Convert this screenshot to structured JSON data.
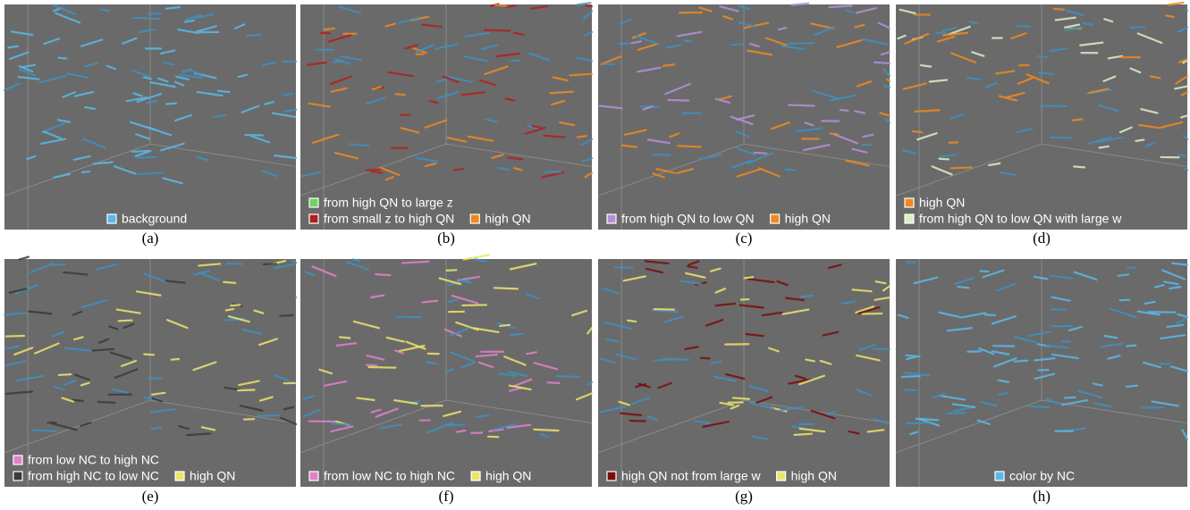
{
  "panels": [
    {
      "caption": "(a)",
      "legend": [
        [
          {
            "label": "background",
            "color": "#59b8e6"
          }
        ]
      ]
    },
    {
      "caption": "(b)",
      "legend": [
        [
          {
            "label": "from high QN to large z",
            "color": "#6fd35f"
          }
        ],
        [
          {
            "label": "from small z to high QN",
            "color": "#b0201c"
          },
          {
            "label": "high QN",
            "color": "#f0881e"
          }
        ]
      ]
    },
    {
      "caption": "(c)",
      "legend": [
        [
          {
            "label": "from high QN to low QN",
            "color": "#b48fd8"
          },
          {
            "label": "high QN",
            "color": "#f0881e"
          }
        ]
      ]
    },
    {
      "caption": "(d)",
      "legend": [
        [
          {
            "label": "high QN",
            "color": "#f0881e"
          }
        ],
        [
          {
            "label": "from high QN to low QN with large w",
            "color": "#dcefc4"
          }
        ]
      ]
    },
    {
      "caption": "(e)",
      "legend": [
        [
          {
            "label": "from low NC to high NC",
            "color": "#e47fc8"
          }
        ],
        [
          {
            "label": "from high NC to low NC",
            "color": "#3a3a3a"
          },
          {
            "label": "high QN",
            "color": "#ece46a"
          }
        ]
      ]
    },
    {
      "caption": "(f)",
      "legend": [
        [
          {
            "label": "from low NC to high NC",
            "color": "#e47fc8"
          },
          {
            "label": "high QN",
            "color": "#ece46a"
          }
        ]
      ]
    },
    {
      "caption": "(g)",
      "legend": [
        [
          {
            "label": "high QN not from large w",
            "color": "#7a0c0c"
          },
          {
            "label": "high QN",
            "color": "#ece46a"
          }
        ]
      ]
    },
    {
      "caption": "(h)",
      "legend": [
        [
          {
            "label": "color by NC",
            "color": "#59b8e6"
          }
        ]
      ]
    }
  ]
}
